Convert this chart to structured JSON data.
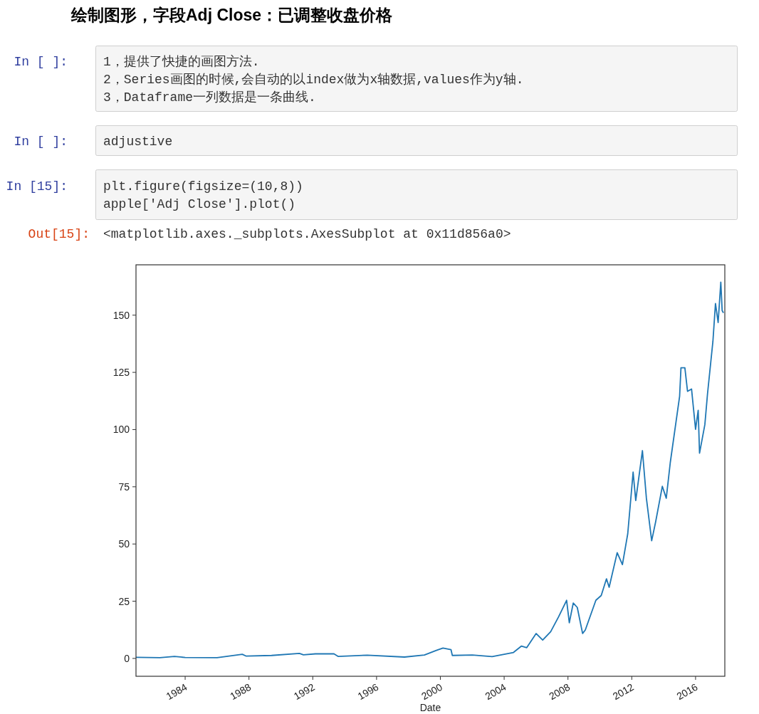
{
  "chart_data": {
    "type": "line",
    "title": "绘制图形，字段Adj Close：已调整收盘价格",
    "xlabel": "Date",
    "annotations": [
      "In [ ]:",
      "1，提供了快捷的画图方法.",
      "2，Series画图的时候,会自动的以index做为x轴数据,values作为y轴.",
      "3，Dataframe一列数据是一条曲线.",
      "In [ ]:",
      "adjustive",
      "In [15]:",
      "plt.figure(figsize=(10,8))",
      "apple['Adj Close'].plot()",
      "Out[15]:",
      "<matplotlib.axes._subplots.AxesSubplot at 0x11d856a0>"
    ],
    "x": [
      "1980-12",
      "1982-06",
      "1983-05",
      "1984-01",
      "1986-01",
      "1987-08",
      "1987-11",
      "1989-06",
      "1991-03",
      "1991-06",
      "1992-03",
      "1993-05",
      "1993-08",
      "1995-06",
      "1997-10",
      "1999-01",
      "1999-10",
      "2000-03",
      "2000-09",
      "2000-10",
      "2002-01",
      "2003-04",
      "2004-08",
      "2005-02",
      "2005-06",
      "2006-01",
      "2006-06",
      "2006-12",
      "2007-06",
      "2007-12",
      "2008-02",
      "2008-05",
      "2008-08",
      "2008-12",
      "2009-02",
      "2009-10",
      "2010-02",
      "2010-06",
      "2010-08",
      "2011-02",
      "2011-06",
      "2011-10",
      "2012-02",
      "2012-04",
      "2012-09",
      "2012-12",
      "2013-04",
      "2013-07",
      "2013-12",
      "2014-03",
      "2014-06",
      "2015-01",
      "2015-02",
      "2015-05",
      "2015-07",
      "2015-10",
      "2016-01",
      "2016-03",
      "2016-04",
      "2016-08",
      "2016-10",
      "2017-02",
      "2017-04",
      "2017-06",
      "2017-08",
      "2017-09",
      "2017-10"
    ],
    "series": [
      {
        "color": "#1f77b4",
        "values": [
          0.5,
          0.3,
          0.9,
          0.4,
          0.3,
          1.8,
          1.0,
          1.3,
          2.2,
          1.6,
          2.0,
          2.0,
          0.9,
          1.4,
          0.6,
          1.5,
          3.5,
          4.5,
          3.8,
          1.3,
          1.5,
          0.8,
          2.6,
          5.4,
          4.7,
          10.9,
          8.0,
          11.7,
          18.2,
          25.4,
          15.6,
          24.2,
          22.3,
          10.9,
          12.4,
          25.4,
          27.5,
          34.8,
          31.1,
          46.2,
          41.0,
          54.5,
          81.4,
          69.0,
          90.8,
          70.0,
          51.4,
          59.7,
          75.2,
          70.0,
          85.6,
          114.6,
          127,
          127,
          116.7,
          117.7,
          100.1,
          108.4,
          89.7,
          102.2,
          115.7,
          138.5,
          155.1,
          146.8,
          164.4,
          152.0,
          151
        ]
      }
    ],
    "xlim": [
      "1980-12-01",
      "2017-11-01"
    ],
    "xticks": [
      "1984",
      "1988",
      "1992",
      "1996",
      "2000",
      "2004",
      "2008",
      "2012",
      "2016"
    ],
    "ylim": [
      -7.8,
      172
    ],
    "yticks": [
      0,
      25,
      50,
      75,
      100,
      125,
      150
    ],
    "grid": false
  }
}
